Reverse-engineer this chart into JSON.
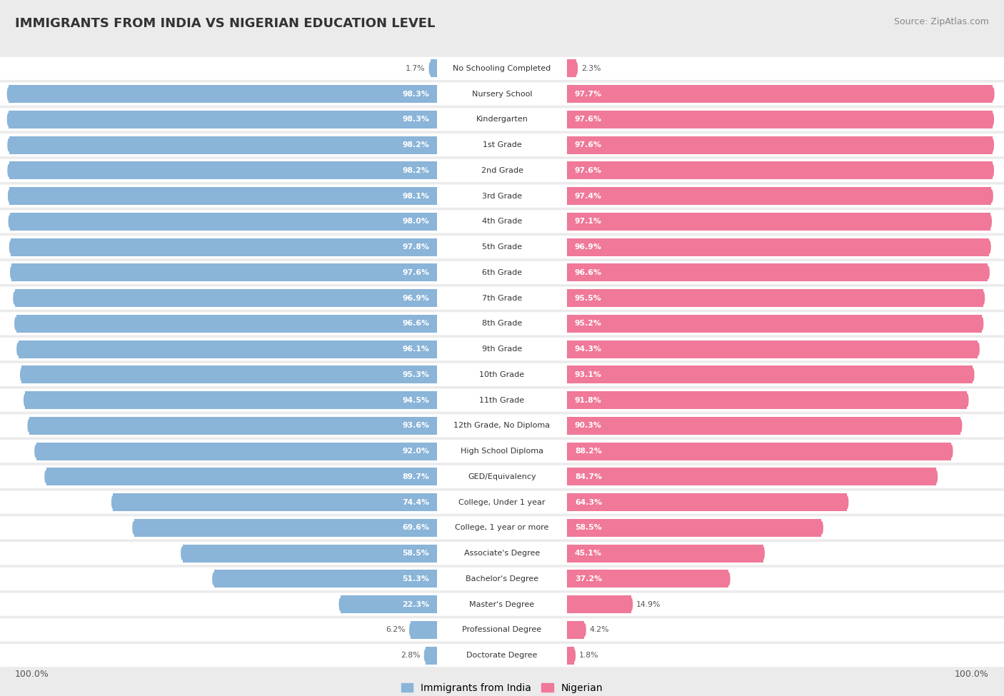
{
  "title": "IMMIGRANTS FROM INDIA VS NIGERIAN EDUCATION LEVEL",
  "source": "Source: ZipAtlas.com",
  "categories": [
    "No Schooling Completed",
    "Nursery School",
    "Kindergarten",
    "1st Grade",
    "2nd Grade",
    "3rd Grade",
    "4th Grade",
    "5th Grade",
    "6th Grade",
    "7th Grade",
    "8th Grade",
    "9th Grade",
    "10th Grade",
    "11th Grade",
    "12th Grade, No Diploma",
    "High School Diploma",
    "GED/Equivalency",
    "College, Under 1 year",
    "College, 1 year or more",
    "Associate's Degree",
    "Bachelor's Degree",
    "Master's Degree",
    "Professional Degree",
    "Doctorate Degree"
  ],
  "india_values": [
    1.7,
    98.3,
    98.3,
    98.2,
    98.2,
    98.1,
    98.0,
    97.8,
    97.6,
    96.9,
    96.6,
    96.1,
    95.3,
    94.5,
    93.6,
    92.0,
    89.7,
    74.4,
    69.6,
    58.5,
    51.3,
    22.3,
    6.2,
    2.8
  ],
  "nigerian_values": [
    2.3,
    97.7,
    97.6,
    97.6,
    97.6,
    97.4,
    97.1,
    96.9,
    96.6,
    95.5,
    95.2,
    94.3,
    93.1,
    91.8,
    90.3,
    88.2,
    84.7,
    64.3,
    58.5,
    45.1,
    37.2,
    14.9,
    4.2,
    1.8
  ],
  "india_color": "#8ab4d8",
  "nigerian_color": "#f07898",
  "background_color": "#ebebeb",
  "row_bg_color": "#ffffff",
  "legend_india": "Immigrants from India",
  "legend_nigerian": "Nigerian",
  "title_fontsize": 13,
  "source_fontsize": 9,
  "label_fontsize": 8,
  "value_fontsize": 7.8
}
